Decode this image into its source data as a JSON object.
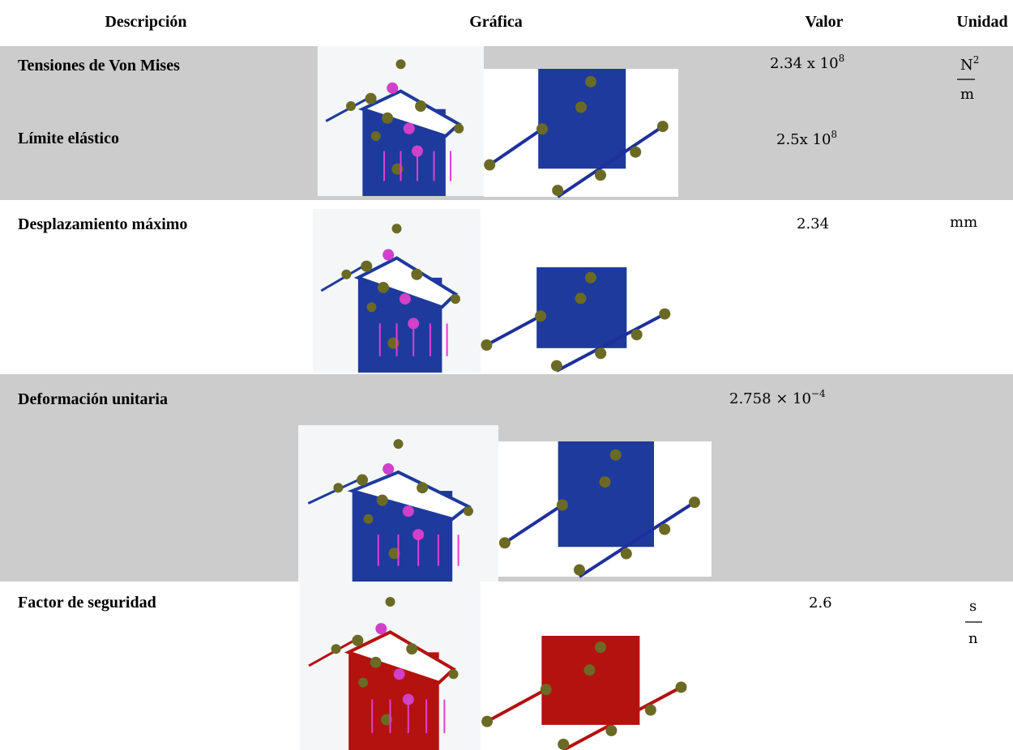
{
  "header": {
    "description": "Descripción",
    "graphic": "Gráfica",
    "value": "Valor",
    "unit": "Unidad"
  },
  "rows": [
    {
      "description": "Tensiones de Von Mises",
      "value": {
        "base": "2.34 x 10",
        "exponent": "8"
      },
      "unit": {
        "numerator": "N",
        "numerator_exponent": "2",
        "denominator": "m"
      }
    },
    {
      "description": "Límite elástico",
      "value": {
        "base": "2.5x 10",
        "exponent": "8"
      }
    },
    {
      "description": "Desplazamiento máximo",
      "value": "2.34",
      "unit": "mm"
    },
    {
      "description": "Deformación unitaria",
      "value": {
        "base": "2.758 × 10",
        "exponent": "−4"
      }
    },
    {
      "description": "Factor de seguridad",
      "value": "2.6",
      "unit": {
        "numerator": "s",
        "denominator": "n"
      }
    }
  ]
}
